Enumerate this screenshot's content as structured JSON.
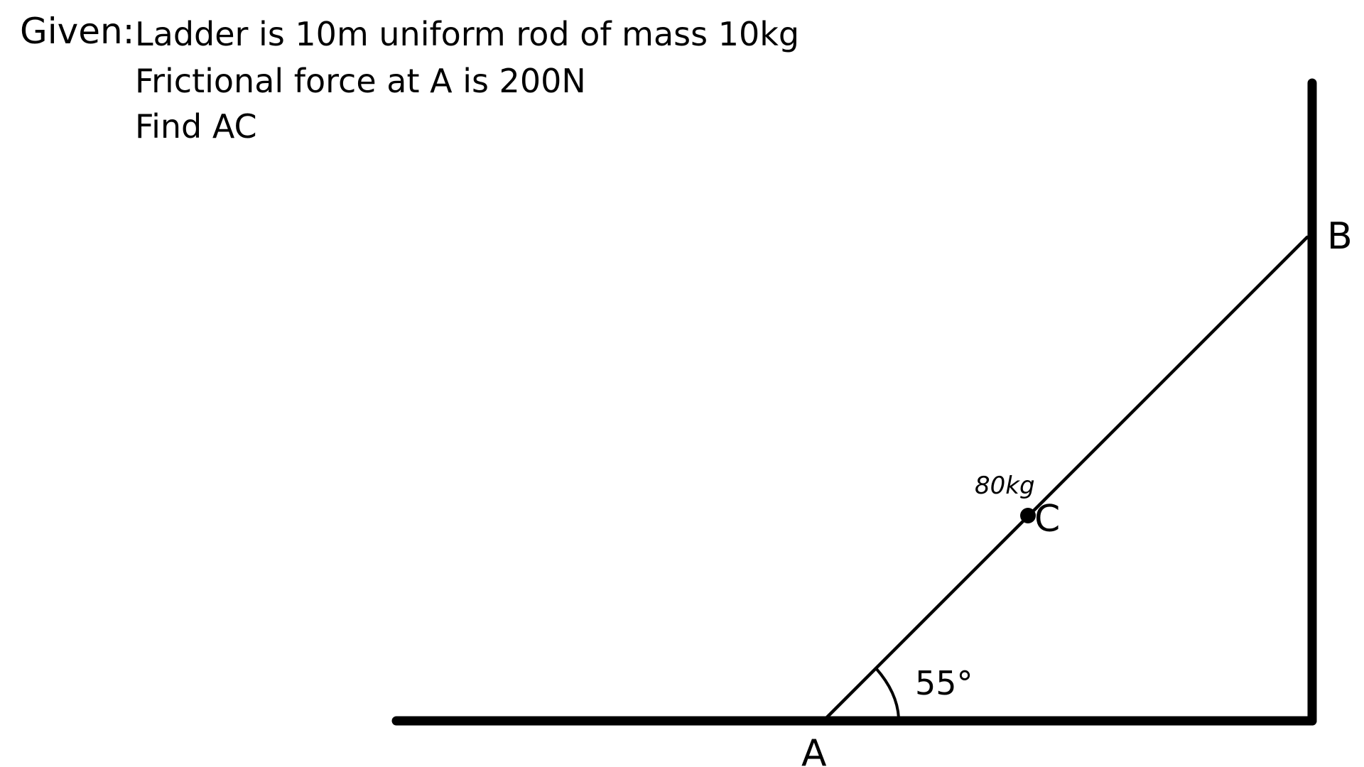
{
  "problem": {
    "given_label": "Given:",
    "lines": [
      "Ladder is 10m uniform rod of mass 10kg",
      "Frictional force at A is 200N",
      "Find AC"
    ]
  },
  "diagram": {
    "point_a": "A",
    "point_b": "B",
    "point_c": "C",
    "mass_at_c": "80kg",
    "angle": "55°",
    "colors": {
      "ink": "#000000",
      "background": "#ffffff"
    }
  }
}
